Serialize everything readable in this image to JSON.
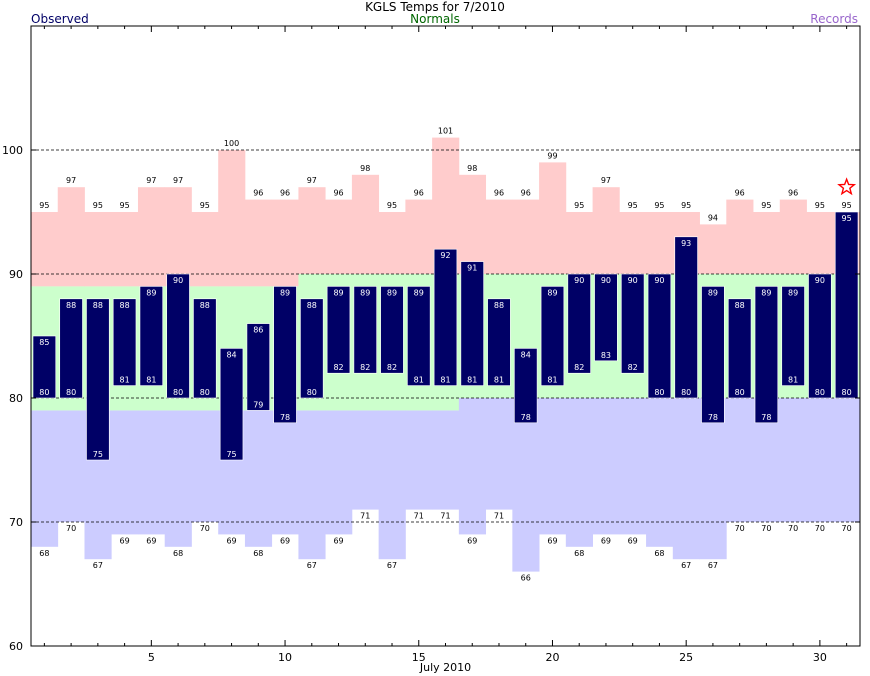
{
  "chart_data": {
    "type": "bar",
    "title": "KGLS Temps for 7/2010",
    "xlabel": "July 2010",
    "ylabel": "",
    "ylim": [
      60,
      110
    ],
    "xlim": [
      0.5,
      31.5
    ],
    "yticks": [
      60,
      70,
      80,
      90,
      100
    ],
    "xticks": [
      5,
      10,
      15,
      20,
      25,
      30
    ],
    "dashed_gridlines": [
      70,
      80,
      90,
      100
    ],
    "legend": [
      {
        "name": "Observed",
        "color": "#000066"
      },
      {
        "name": "Normals",
        "color": "#006600"
      },
      {
        "name": "Records",
        "color": "#9966cc"
      }
    ],
    "colors": {
      "observed": "#000066",
      "normals": "#ccffcc",
      "record_high": "#ffcccc",
      "record_low": "#ccccff",
      "star": "#ff0000"
    },
    "days": [
      1,
      2,
      3,
      4,
      5,
      6,
      7,
      8,
      9,
      10,
      11,
      12,
      13,
      14,
      15,
      16,
      17,
      18,
      19,
      20,
      21,
      22,
      23,
      24,
      25,
      26,
      27,
      28,
      29,
      30,
      31
    ],
    "observed_high": [
      85,
      88,
      88,
      88,
      89,
      90,
      88,
      84,
      86,
      89,
      88,
      89,
      89,
      89,
      89,
      92,
      91,
      88,
      84,
      89,
      90,
      90,
      90,
      90,
      93,
      89,
      88,
      89,
      89,
      90,
      95
    ],
    "observed_low": [
      80,
      80,
      75,
      81,
      81,
      80,
      80,
      75,
      79,
      78,
      80,
      82,
      82,
      82,
      81,
      81,
      81,
      81,
      78,
      81,
      82,
      83,
      82,
      80,
      80,
      78,
      80,
      78,
      81,
      80,
      80
    ],
    "normal_high": [
      89,
      89,
      89,
      89,
      89,
      89,
      89,
      89,
      89,
      89,
      90,
      90,
      90,
      90,
      90,
      90,
      90,
      90,
      90,
      90,
      90,
      90,
      90,
      90,
      90,
      90,
      90,
      90,
      90,
      90,
      90
    ],
    "normal_low": [
      79,
      79,
      79,
      79,
      79,
      79,
      79,
      79,
      79,
      79,
      79,
      79,
      79,
      79,
      79,
      79,
      80,
      80,
      80,
      80,
      80,
      80,
      80,
      80,
      80,
      80,
      80,
      80,
      80,
      80,
      80
    ],
    "record_high": [
      95,
      97,
      95,
      95,
      97,
      97,
      95,
      100,
      96,
      96,
      97,
      96,
      98,
      95,
      96,
      101,
      98,
      96,
      96,
      99,
      95,
      97,
      95,
      95,
      95,
      94,
      96,
      95,
      96,
      95,
      95
    ],
    "record_low": [
      68,
      70,
      67,
      69,
      69,
      68,
      70,
      69,
      68,
      69,
      67,
      69,
      71,
      67,
      71,
      71,
      69,
      71,
      66,
      69,
      68,
      69,
      69,
      68,
      67,
      67,
      70,
      70,
      70,
      70,
      70
    ],
    "record_set_marker": {
      "day": 31,
      "value": 97
    }
  }
}
